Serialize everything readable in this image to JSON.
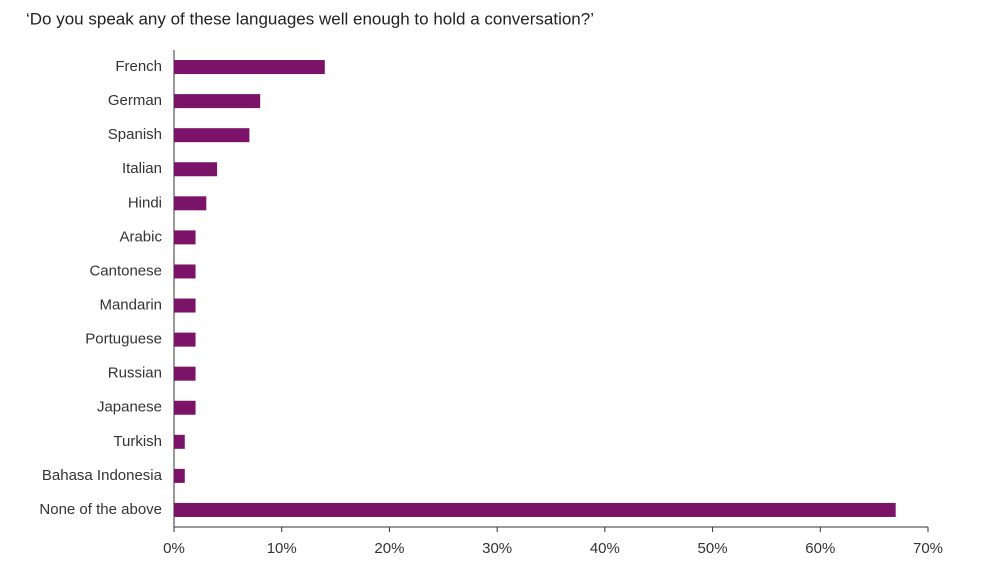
{
  "chart_data": {
    "type": "bar",
    "orientation": "horizontal",
    "title": "‘Do you speak any of these languages well enough to hold a conversation?’",
    "categories": [
      "French",
      "German",
      "Spanish",
      "Italian",
      "Hindi",
      "Arabic",
      "Cantonese",
      "Mandarin",
      "Portuguese",
      "Russian",
      "Japanese",
      "Turkish",
      "Bahasa Indonesia",
      "None of the above"
    ],
    "values": [
      14,
      8,
      7,
      4,
      3,
      2,
      2,
      2,
      2,
      2,
      2,
      1,
      1,
      67
    ],
    "color": "#7b1468",
    "xlim": [
      0,
      70
    ],
    "xticks": [
      {
        "value": 0,
        "label": "0%"
      },
      {
        "value": 10,
        "label": "10%"
      },
      {
        "value": 20,
        "label": "20%"
      },
      {
        "value": 30,
        "label": "30%"
      },
      {
        "value": 40,
        "label": "40%"
      },
      {
        "value": 50,
        "label": "50%"
      },
      {
        "value": 60,
        "label": "60%"
      },
      {
        "value": 70,
        "label": "70%"
      }
    ],
    "grid": false
  }
}
